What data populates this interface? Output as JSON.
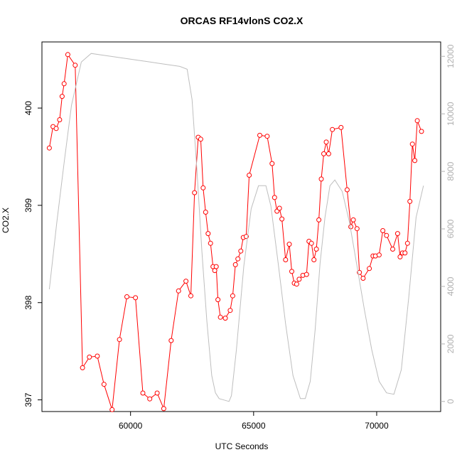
{
  "chart_data": {
    "type": "line",
    "title": "ORCAS RF14vlonS CO2.X",
    "xlabel": "UTC Seconds",
    "ylabel": "CO2.X",
    "xlim": [
      56400,
      72600
    ],
    "ylim": [
      396.88,
      400.68
    ],
    "y2lim": [
      -350,
      12500
    ],
    "x_ticks": [
      60000,
      65000,
      70000
    ],
    "y_ticks": [
      397,
      398,
      399,
      400
    ],
    "y2_ticks": [
      0,
      2000,
      4000,
      6000,
      8000,
      10000,
      12000
    ],
    "grid": false,
    "series": [
      {
        "axis": "left",
        "color": "#ff0000",
        "style": "line-points",
        "x": [
          56700,
          56850,
          56980,
          57120,
          57220,
          57300,
          57450,
          57750,
          58050,
          58330,
          58650,
          58920,
          59250,
          59550,
          59850,
          60200,
          60500,
          60780,
          61080,
          61350,
          61650,
          61950,
          62250,
          62450,
          62600,
          62750,
          62850,
          62950,
          63050,
          63150,
          63250,
          63350,
          63420,
          63480,
          63550,
          63650,
          63850,
          64050,
          64150,
          64260,
          64360,
          64480,
          64580,
          64700,
          64820,
          65250,
          65550,
          65750,
          65850,
          65950,
          66050,
          66150,
          66300,
          66450,
          66550,
          66650,
          66750,
          66850,
          67000,
          67150,
          67250,
          67350,
          67450,
          67550,
          67650,
          67750,
          67850,
          67950,
          68050,
          68200,
          68550,
          68800,
          68950,
          69050,
          69200,
          69300,
          69450,
          69700,
          69850,
          69950,
          70100,
          70250,
          70400,
          70650,
          70850,
          70950,
          71050,
          71150,
          71250,
          71350,
          71450,
          71550,
          71650,
          71820
        ],
        "y": [
          399.59,
          399.81,
          399.79,
          399.88,
          400.12,
          400.25,
          400.55,
          400.44,
          397.33,
          397.44,
          397.45,
          397.16,
          396.9,
          397.62,
          398.06,
          398.05,
          397.07,
          397.01,
          397.07,
          396.91,
          397.61,
          398.12,
          398.22,
          398.07,
          399.13,
          399.7,
          399.68,
          399.18,
          398.93,
          398.71,
          398.61,
          398.37,
          398.33,
          398.37,
          398.03,
          397.85,
          397.84,
          397.92,
          398.07,
          398.39,
          398.45,
          398.53,
          398.67,
          398.68,
          399.31,
          399.72,
          399.71,
          399.43,
          399.08,
          398.94,
          398.97,
          398.86,
          398.44,
          398.6,
          398.32,
          398.2,
          398.19,
          398.24,
          398.28,
          398.29,
          398.63,
          398.61,
          398.44,
          398.55,
          398.85,
          399.27,
          399.53,
          399.65,
          399.53,
          399.78,
          399.8,
          399.16,
          398.78,
          398.85,
          398.76,
          398.31,
          398.25,
          398.35,
          398.48,
          398.48,
          398.49,
          398.74,
          398.69,
          398.55,
          398.71,
          398.47,
          398.51,
          398.51,
          398.61,
          399.04,
          399.63,
          399.46,
          399.87,
          399.76
        ]
      },
      {
        "axis": "right",
        "color": "#bebebe",
        "style": "line",
        "x": [
          56700,
          57000,
          57300,
          57600,
          58000,
          58400,
          58800,
          59200,
          59600,
          60000,
          60400,
          60800,
          61200,
          61600,
          62000,
          62300,
          62500,
          62700,
          62900,
          63100,
          63300,
          63450,
          63600,
          63800,
          64000,
          64100,
          64300,
          64600,
          64900,
          65200,
          65500,
          65700,
          66000,
          66300,
          66600,
          66900,
          67100,
          67300,
          67500,
          67700,
          67900,
          68100,
          68300,
          68600,
          68900,
          69200,
          69500,
          69800,
          70100,
          70400,
          70700,
          71000,
          71300,
          71600,
          71900
        ],
        "y": [
          3900,
          6200,
          8300,
          10300,
          11800,
          12100,
          12050,
          12000,
          11950,
          11900,
          11850,
          11800,
          11750,
          11700,
          11650,
          11550,
          10500,
          8000,
          5200,
          2800,
          900,
          300,
          100,
          50,
          0,
          200,
          1800,
          4700,
          6700,
          7500,
          7500,
          6800,
          4800,
          2700,
          900,
          100,
          100,
          700,
          2500,
          4800,
          6400,
          7500,
          7700,
          7300,
          6200,
          4700,
          3200,
          1800,
          700,
          300,
          250,
          1100,
          3600,
          6400,
          7500
        ]
      }
    ]
  }
}
